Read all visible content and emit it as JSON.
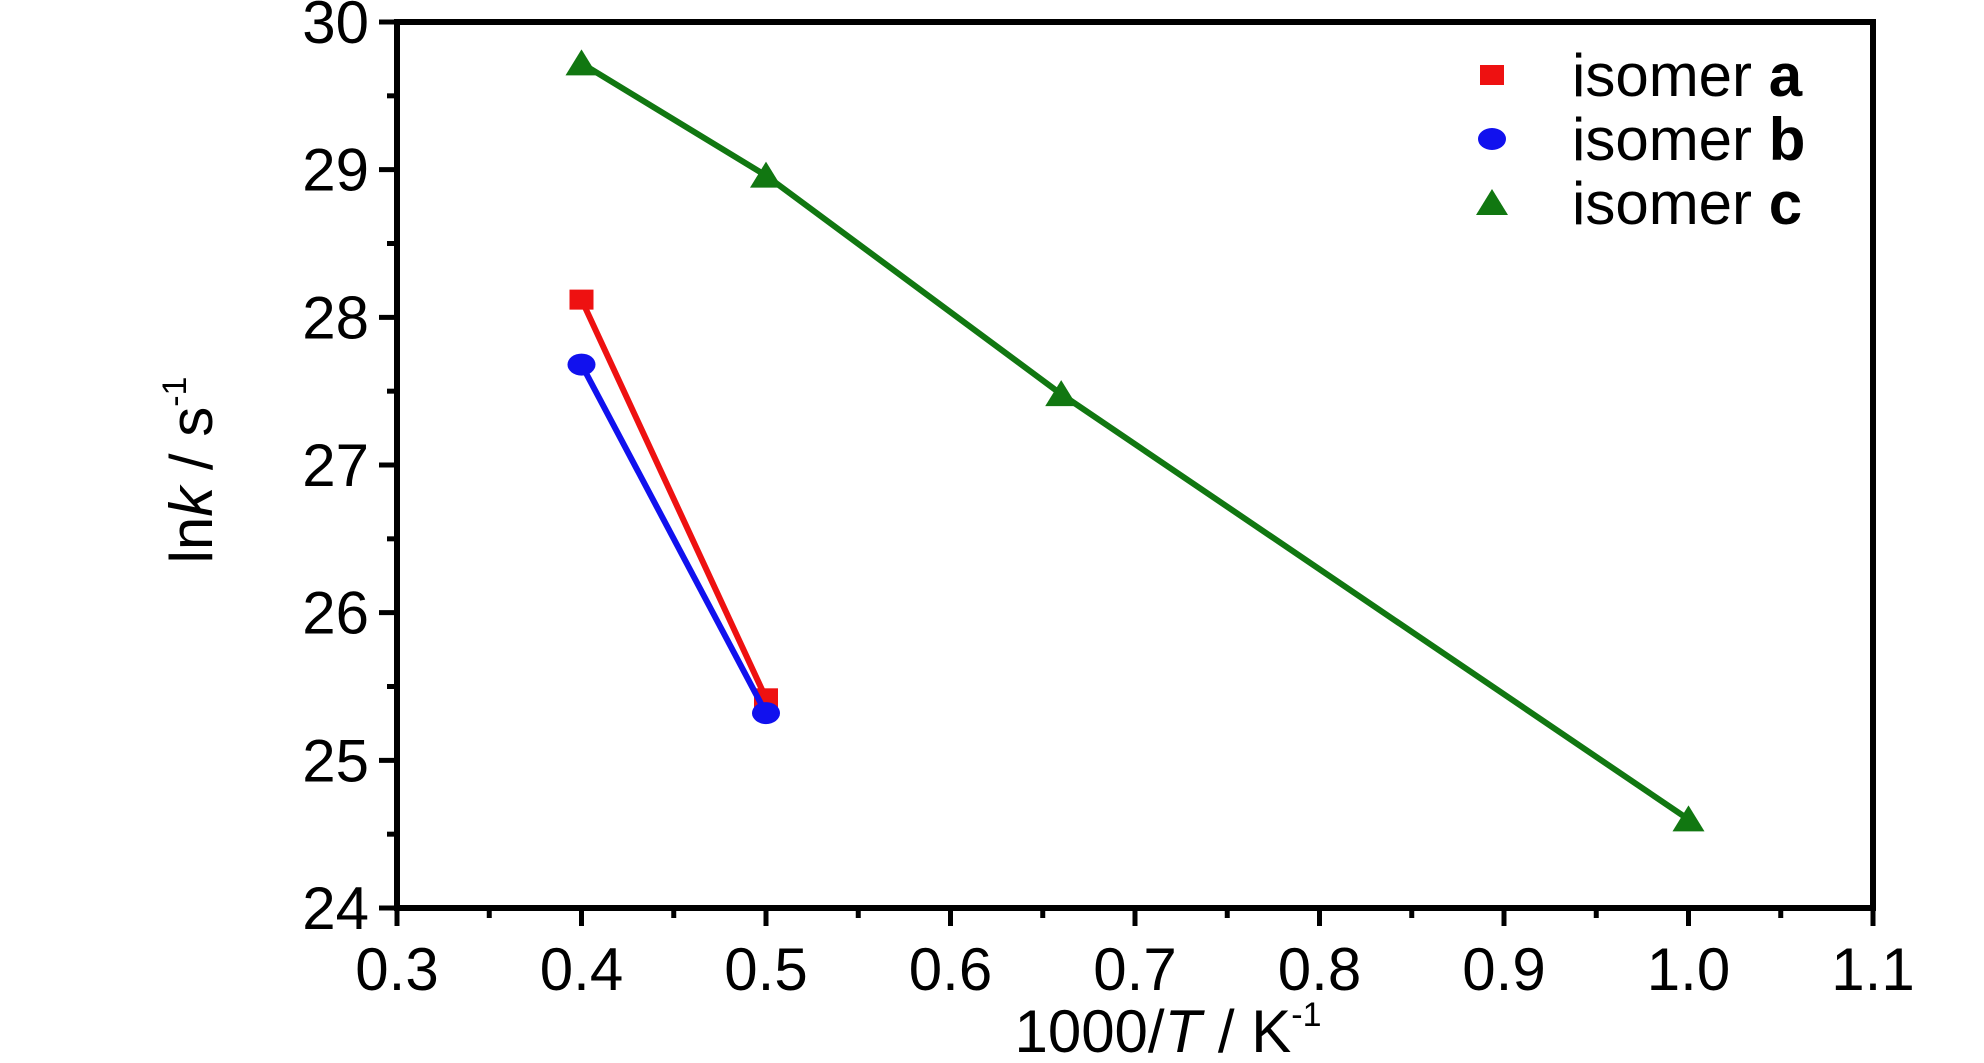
{
  "chart_data": {
    "type": "line",
    "xlabel": {
      "prefix": "1000/",
      "italic": "T",
      "suffix": " / K",
      "sup": "-1"
    },
    "ylabel": {
      "prefix": "ln",
      "italic": "k",
      "suffix": " / s",
      "sup": "-1"
    },
    "xlim": [
      0.3,
      1.1
    ],
    "ylim": [
      24,
      30
    ],
    "x_ticks": [
      "0.3",
      "0.4",
      "0.5",
      "0.6",
      "0.7",
      "0.8",
      "0.9",
      "1.0",
      "1.1"
    ],
    "y_ticks": [
      "24",
      "25",
      "26",
      "27",
      "28",
      "29",
      "30"
    ],
    "grid": false,
    "legend_position": "top-right",
    "series": [
      {
        "name_prefix": "isomer ",
        "name_bold": "a",
        "marker": "square",
        "color": "#ee1111",
        "points": [
          [
            0.4,
            28.12
          ],
          [
            0.5,
            25.42
          ]
        ]
      },
      {
        "name_prefix": "isomer ",
        "name_bold": "b",
        "marker": "circle",
        "color": "#1111ee",
        "points": [
          [
            0.4,
            27.68
          ],
          [
            0.5,
            25.32
          ]
        ]
      },
      {
        "name_prefix": "isomer ",
        "name_bold": "c",
        "marker": "triangle",
        "color": "#117711",
        "points": [
          [
            0.4,
            29.72
          ],
          [
            0.5,
            28.96
          ],
          [
            0.66,
            27.48
          ],
          [
            1.0,
            24.6
          ]
        ]
      }
    ]
  }
}
